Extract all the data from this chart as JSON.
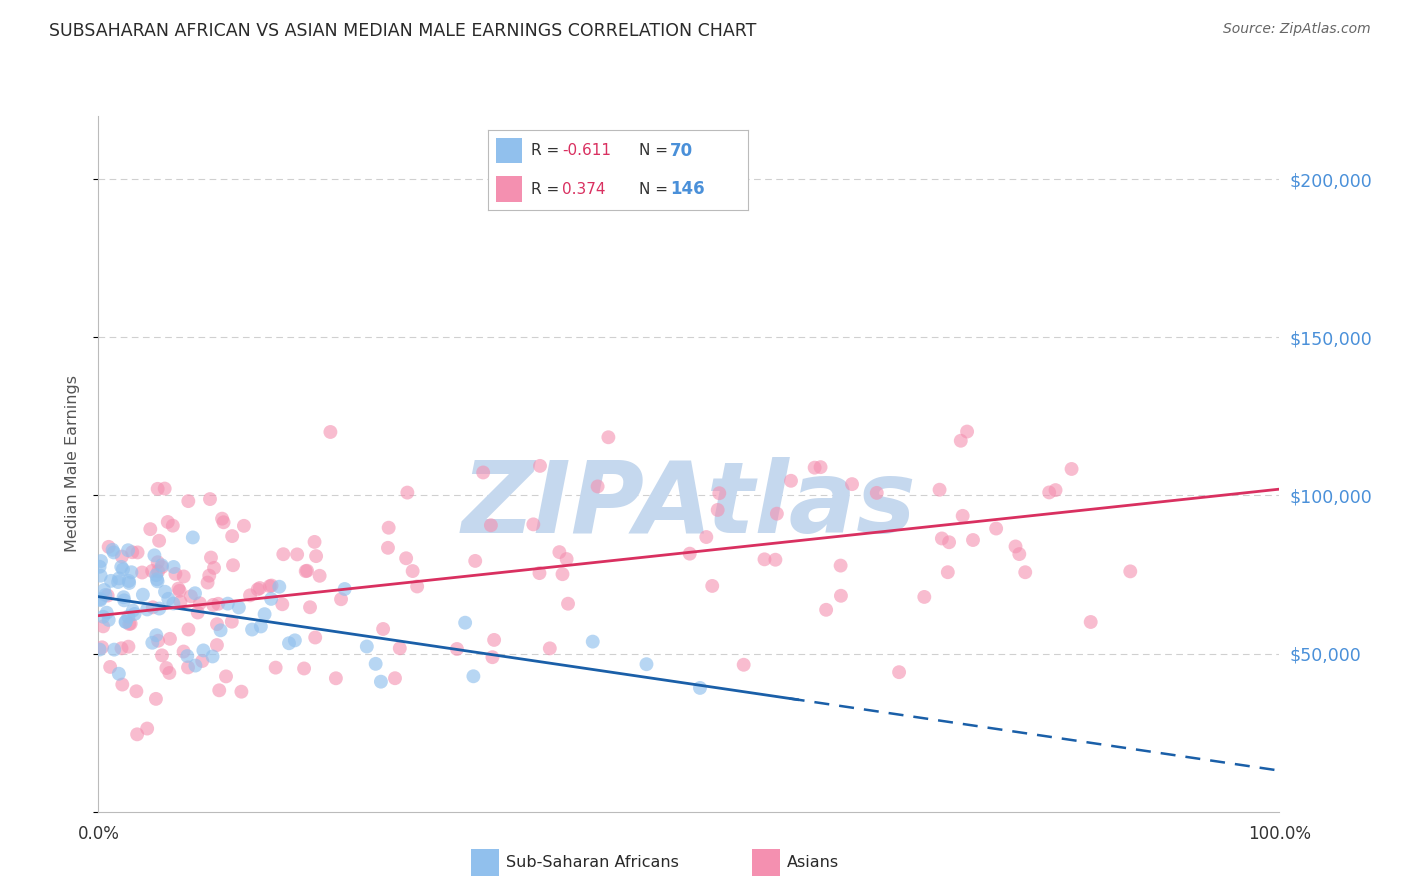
{
  "title": "SUBSAHARAN AFRICAN VS ASIAN MEDIAN MALE EARNINGS CORRELATION CHART",
  "source": "Source: ZipAtlas.com",
  "ylabel": "Median Male Earnings",
  "xlim": [
    0,
    1.0
  ],
  "ylim": [
    0,
    220000
  ],
  "yticks": [
    0,
    50000,
    100000,
    150000,
    200000
  ],
  "ytick_labels": [
    "",
    "$50,000",
    "$100,000",
    "$150,000",
    "$200,000"
  ],
  "background_color": "#ffffff",
  "watermark": "ZIPAtlas",
  "watermark_color": "#c5d8ee",
  "series1_name": "Sub-Saharan Africans",
  "series2_name": "Asians",
  "series1_color": "#91c0ed",
  "series2_color": "#f490b0",
  "series1_line_color": "#1a5fa8",
  "series2_line_color": "#d93060",
  "title_color": "#2a2a2a",
  "source_color": "#666666",
  "ylabel_color": "#555555",
  "ytick_color": "#4a90d9",
  "xtick_color": "#333333",
  "grid_color": "#d0d0d0",
  "legend_box_color": "#e8e8e8",
  "s1_intercept": 68000,
  "s1_slope": -55000,
  "s2_intercept": 62000,
  "s2_slope": 40000,
  "seed": 7
}
